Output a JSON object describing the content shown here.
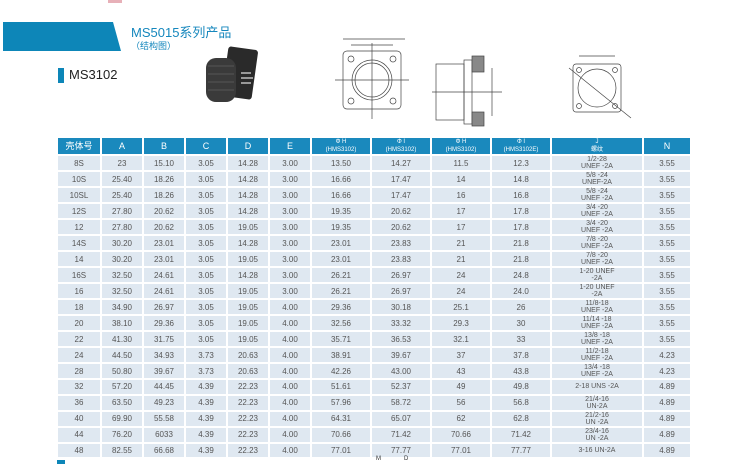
{
  "header": {
    "title": "MS5015系列产品",
    "subtitle": "（结构图）",
    "model": "MS3102"
  },
  "table": {
    "headers": [
      {
        "top": "壳体号"
      },
      {
        "top": "A"
      },
      {
        "top": "B"
      },
      {
        "top": "C"
      },
      {
        "top": "D"
      },
      {
        "top": "E"
      },
      {
        "top": "Φ H",
        "sub": "(HMS3102)"
      },
      {
        "top": "Φ I",
        "sub": "(HMS3102)"
      },
      {
        "top": "Φ H",
        "sub": "(HMS3102)"
      },
      {
        "top": "Φ I",
        "sub": "(HMS3102E)"
      },
      {
        "top": "J",
        "sub": "螺纹"
      },
      {
        "top": "N"
      }
    ],
    "rows": [
      [
        "8S",
        "23",
        "15.10",
        "3.05",
        "14.28",
        "3.00",
        "13.50",
        "14.27",
        "11.5",
        "12.3",
        [
          "1/2-28",
          "UNEF -2A"
        ],
        "3.55"
      ],
      [
        "10S",
        "25.40",
        "18.26",
        "3.05",
        "14.28",
        "3.00",
        "16.66",
        "17.47",
        "14",
        "14.8",
        [
          "5/8 -24",
          "UNEF-2A"
        ],
        "3.55"
      ],
      [
        "10SL",
        "25.40",
        "18.26",
        "3.05",
        "14.28",
        "3.00",
        "16.66",
        "17.47",
        "16",
        "16.8",
        [
          "5/8 -24",
          "UNEF -2A"
        ],
        "3.55"
      ],
      [
        "12S",
        "27.80",
        "20.62",
        "3.05",
        "14.28",
        "3.00",
        "19.35",
        "20.62",
        "17",
        "17.8",
        [
          "3/4 -20",
          "UNEF -2A"
        ],
        "3.55"
      ],
      [
        "12",
        "27.80",
        "20.62",
        "3.05",
        "19.05",
        "3.00",
        "19.35",
        "20.62",
        "17",
        "17.8",
        [
          "3/4 -20",
          "UNEF -2A"
        ],
        "3.55"
      ],
      [
        "14S",
        "30.20",
        "23.01",
        "3.05",
        "14.28",
        "3.00",
        "23.01",
        "23.83",
        "21",
        "21.8",
        [
          "7/8 -20",
          "UNEF -2A"
        ],
        "3.55"
      ],
      [
        "14",
        "30.20",
        "23.01",
        "3.05",
        "19.05",
        "3.00",
        "23.01",
        "23.83",
        "21",
        "21.8",
        [
          "7/8 -20",
          "UNEF -2A"
        ],
        "3.55"
      ],
      [
        "16S",
        "32.50",
        "24.61",
        "3.05",
        "14.28",
        "3.00",
        "26.21",
        "26.97",
        "24",
        "24.8",
        [
          "1-20 UNEF",
          "-2A"
        ],
        "3.55"
      ],
      [
        "16",
        "32.50",
        "24.61",
        "3.05",
        "19.05",
        "3.00",
        "26.21",
        "26.97",
        "24",
        "24.0",
        [
          "1-20 UNEF",
          "-2A"
        ],
        "3.55"
      ],
      [
        "18",
        "34.90",
        "26.97",
        "3.05",
        "19.05",
        "4.00",
        "29.36",
        "30.18",
        "25.1",
        "26",
        [
          "11/8-18",
          "UNEF -2A"
        ],
        "3.55"
      ],
      [
        "20",
        "38.10",
        "29.36",
        "3.05",
        "19.05",
        "4.00",
        "32.56",
        "33.32",
        "29.3",
        "30",
        [
          "11/14 -18",
          "UNEF -2A"
        ],
        "3.55"
      ],
      [
        "22",
        "41.30",
        "31.75",
        "3.05",
        "19.05",
        "4.00",
        "35.71",
        "36.53",
        "32.1",
        "33",
        [
          "13/8 -18",
          "UNEF -2A"
        ],
        "3.55"
      ],
      [
        "24",
        "44.50",
        "34.93",
        "3.73",
        "20.63",
        "4.00",
        "38.91",
        "39.67",
        "37",
        "37.8",
        [
          "11/2-18",
          "UNEF -2A"
        ],
        "4.23"
      ],
      [
        "28",
        "50.80",
        "39.67",
        "3.73",
        "20.63",
        "4.00",
        "42.26",
        "43.00",
        "43",
        "43.8",
        [
          "13/4 -18",
          "UNEF -2A"
        ],
        "4.23"
      ],
      [
        "32",
        "57.20",
        "44.45",
        "4.39",
        "22.23",
        "4.00",
        "51.61",
        "52.37",
        "49",
        "49.8",
        [
          "2-18 UNS -2A"
        ],
        "4.89"
      ],
      [
        "36",
        "63.50",
        "49.23",
        "4.39",
        "22.23",
        "4.00",
        "57.96",
        "58.72",
        "56",
        "56.8",
        [
          "21/4-16",
          "UN-2A"
        ],
        "4.89"
      ],
      [
        "40",
        "69.90",
        "55.58",
        "4.39",
        "22.23",
        "4.00",
        "64.31",
        "65.07",
        "62",
        "62.8",
        [
          "21/2-16",
          "UN -2A"
        ],
        "4.89"
      ],
      [
        "44",
        "76.20",
        "6033",
        "4.39",
        "22.23",
        "4.00",
        "70.66",
        "71.42",
        "70.66",
        "71.42",
        [
          "23/4-16",
          "UN -2A"
        ],
        "4.89"
      ],
      [
        "48",
        "82.55",
        "66.68",
        "4.39",
        "22.23",
        "4.00",
        "77.01",
        "77.77",
        "77.01",
        "77.77",
        [
          "3-16 UN-2A"
        ],
        "4.89"
      ]
    ]
  },
  "footer": {
    "m": "M",
    "d": "D"
  },
  "colors": {
    "accent": "#0d86b8",
    "header_bg": "#1a89bd",
    "row_bg": "#dfe8f1"
  }
}
